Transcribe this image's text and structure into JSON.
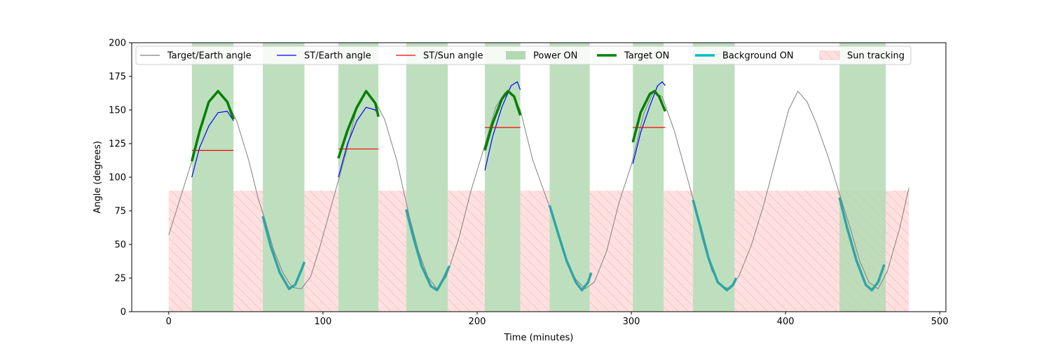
{
  "chart_data": {
    "type": "line",
    "title": "",
    "xlabel": "Time (minutes)",
    "ylabel": "Angle (degrees)",
    "xlim": [
      -24,
      504
    ],
    "ylim": [
      0,
      200
    ],
    "x_ticks": [
      0,
      100,
      200,
      300,
      400,
      500
    ],
    "y_ticks": [
      0,
      25,
      50,
      75,
      100,
      125,
      150,
      175,
      200
    ],
    "grid": false,
    "legend_position": "top, single row",
    "colors": {
      "target_earth": "#808080",
      "st_earth": "#0000ff",
      "st_sun": "#ff0000",
      "power_on": "#b3d9b3",
      "target_on": "#008000",
      "background_on": "#30a5a5",
      "sun_tracking_fill": "#ffe0e0",
      "sun_tracking_hatch": "#f0a8a8"
    },
    "legend": [
      {
        "key": "target_earth",
        "label": "Target/Earth angle",
        "kind": "thin-line"
      },
      {
        "key": "st_earth",
        "label": "ST/Earth angle",
        "kind": "thin-line"
      },
      {
        "key": "st_sun",
        "label": "ST/Sun angle",
        "kind": "thin-line"
      },
      {
        "key": "power_on",
        "label": "Power ON",
        "kind": "patch"
      },
      {
        "key": "target_on",
        "label": "Target ON",
        "kind": "thick-line"
      },
      {
        "key": "background_on",
        "label": "Background ON",
        "kind": "thick-cyan"
      },
      {
        "key": "sun_tracking",
        "label": "Sun tracking",
        "kind": "hatch-patch"
      }
    ],
    "series": [
      {
        "name": "Target/Earth angle",
        "key": "target_earth",
        "x": [
          0,
          15,
          26,
          32,
          38,
          44,
          52,
          58,
          62,
          68,
          74,
          80,
          86,
          92,
          98,
          106,
          115,
          122,
          128,
          134,
          140,
          148,
          156,
          162,
          168,
          174,
          180,
          188,
          196,
          204,
          212,
          218,
          222,
          228,
          236,
          246,
          252,
          258,
          264,
          270,
          276,
          284,
          292,
          300,
          308,
          314,
          320,
          328,
          340,
          346,
          352,
          358,
          364,
          370,
          378,
          386,
          394,
          402,
          408,
          414,
          420,
          428,
          436,
          442,
          448,
          454,
          460,
          466,
          474,
          480
        ],
        "y": [
          57,
          112,
          156,
          164,
          156,
          142,
          112,
          84,
          70,
          46,
          29,
          18,
          17,
          26,
          48,
          81,
          118,
          152,
          164,
          156,
          143,
          112,
          71,
          45,
          26,
          17,
          26,
          54,
          90,
          120,
          152,
          163,
          163,
          150,
          113,
          81,
          60,
          38,
          24,
          17,
          22,
          45,
          81,
          109,
          147,
          163,
          160,
          134,
          84,
          54,
          31,
          19,
          17,
          27,
          50,
          80,
          115,
          150,
          164,
          156,
          140,
          114,
          84,
          62,
          38,
          22,
          17,
          30,
          62,
          92
        ]
      },
      {
        "name": "ST/Earth angle",
        "key": "st_earth",
        "segments": [
          {
            "x": [
              15,
              20,
              26,
              32,
              38,
              42
            ],
            "y": [
              100,
              122,
              138,
              148,
              149,
              142
            ]
          },
          {
            "x": [
              110,
              116,
              122,
              128,
              134,
              136
            ],
            "y": [
              100,
              125,
              142,
              152,
              150,
              146
            ]
          },
          {
            "x": [
              205,
              210,
              216,
              222,
              226,
              228
            ],
            "y": [
              105,
              130,
              152,
              168,
              171,
              165
            ]
          },
          {
            "x": [
              301,
              306,
              312,
              317,
              320,
              322
            ],
            "y": [
              110,
              133,
              153,
              168,
              171,
              168
            ]
          }
        ]
      },
      {
        "name": "ST/Sun angle",
        "key": "st_sun",
        "segments": [
          {
            "x": [
              15,
              42
            ],
            "y": [
              120,
              120
            ]
          },
          {
            "x": [
              110,
              136
            ],
            "y": [
              121,
              121
            ]
          },
          {
            "x": [
              205,
              228
            ],
            "y": [
              137,
              137
            ]
          },
          {
            "x": [
              301,
              322
            ],
            "y": [
              137,
              137
            ]
          }
        ]
      },
      {
        "name": "Target ON",
        "key": "target_on",
        "segments": [
          {
            "x": [
              15,
              20,
              26,
              32,
              38,
              42
            ],
            "y": [
              112,
              134,
              156,
              164,
              156,
              143
            ]
          },
          {
            "x": [
              110,
              116,
              122,
              128,
              134,
              136
            ],
            "y": [
              114,
              135,
              152,
              164,
              155,
              145
            ]
          },
          {
            "x": [
              205,
              210,
              216,
              220,
              224,
              228
            ],
            "y": [
              120,
              140,
              158,
              164,
              160,
              146
            ]
          },
          {
            "x": [
              301,
              306,
              312,
              315,
              318,
              322
            ],
            "y": [
              126,
              148,
              162,
              164,
              160,
              149
            ]
          }
        ]
      },
      {
        "name": "Background ON",
        "key": "background_on",
        "segments": [
          {
            "x": [
              61,
              66,
              72,
              78,
              82,
              86,
              88
            ],
            "y": [
              71,
              49,
              29,
              17,
              20,
              31,
              37
            ]
          },
          {
            "x": [
              154,
              158,
              164,
              170,
              174,
              178,
              182
            ],
            "y": [
              76,
              58,
              34,
              19,
              16,
              24,
              34
            ]
          },
          {
            "x": [
              247,
              252,
              258,
              264,
              268,
              272,
              274
            ],
            "y": [
              79,
              60,
              38,
              22,
              16,
              22,
              29
            ]
          },
          {
            "x": [
              340,
              345,
              350,
              356,
              362,
              366,
              368
            ],
            "y": [
              83,
              62,
              40,
              22,
              16,
              20,
              25
            ]
          },
          {
            "x": [
              435,
              440,
              446,
              452,
              456,
              460,
              464
            ],
            "y": [
              85,
              62,
              38,
              20,
              16,
              22,
              35
            ]
          }
        ]
      }
    ],
    "power_on_intervals": [
      [
        15,
        42
      ],
      [
        61,
        88
      ],
      [
        110,
        136
      ],
      [
        154,
        181
      ],
      [
        205,
        228
      ],
      [
        247,
        273
      ],
      [
        301,
        321
      ],
      [
        340,
        367
      ],
      [
        435,
        465
      ]
    ],
    "sun_tracking_intervals": [
      [
        0,
        15
      ],
      [
        42,
        61
      ],
      [
        88,
        110
      ],
      [
        136,
        154
      ],
      [
        181,
        205
      ],
      [
        228,
        247
      ],
      [
        273,
        301
      ],
      [
        321,
        340
      ],
      [
        367,
        480
      ]
    ],
    "sun_tracking_level": 90
  }
}
